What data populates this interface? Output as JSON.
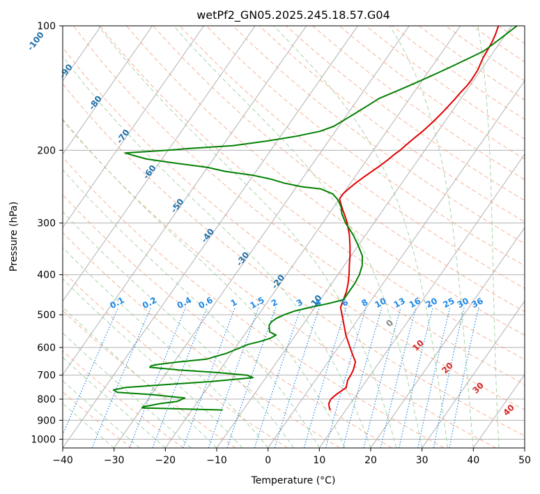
{
  "chart_data": {
    "type": "line",
    "title": "wetPf2_GN05.2025.245.18.57.G04",
    "xlabel": "Temperature (°C)",
    "ylabel": "Pressure (hPa)",
    "xlim": [
      -40,
      50
    ],
    "ylim": [
      1050,
      100
    ],
    "y_scale": "log",
    "grid": true,
    "x_ticks": [
      "−40",
      "−30",
      "−20",
      "−10",
      "0",
      "10",
      "20",
      "30",
      "40",
      "50"
    ],
    "y_ticks": [
      "100",
      "200",
      "300",
      "400",
      "500",
      "600",
      "700",
      "800",
      "900",
      "1000"
    ],
    "series": [
      {
        "color": "#e00000",
        "p": [
          850,
          840,
          820,
          800,
          780,
          750,
          720,
          700,
          680,
          650,
          620,
          600,
          560,
          520,
          480,
          460,
          440,
          420,
          400,
          380,
          360,
          340,
          320,
          300,
          290,
          280,
          270,
          262,
          255,
          248,
          240,
          232,
          225,
          218,
          210,
          205,
          200,
          190,
          180,
          170,
          160,
          150,
          145,
          140,
          135,
          128,
          120,
          115,
          110,
          105,
          100
        ],
        "t": [
          7,
          6.5,
          5.8,
          5.6,
          6.0,
          7.0,
          6.3,
          6.2,
          6.0,
          5.3,
          3.5,
          2.3,
          -0.2,
          -2.5,
          -5.0,
          -5.5,
          -6.0,
          -6.8,
          -7.8,
          -9.0,
          -10.2,
          -11.6,
          -13.2,
          -15.2,
          -16.4,
          -17.7,
          -19.0,
          -20.0,
          -20.0,
          -19.6,
          -19.0,
          -18.2,
          -17.4,
          -16.6,
          -15.8,
          -15.4,
          -14.8,
          -14.0,
          -13.0,
          -12.2,
          -11.6,
          -11.1,
          -10.9,
          -10.6,
          -10.5,
          -10.6,
          -11.2,
          -11.4,
          -11.6,
          -12.0,
          -12.6
        ]
      },
      {
        "color": "#008000",
        "p": [
          850,
          845,
          840,
          835,
          830,
          820,
          810,
          795,
          780,
          770,
          760,
          750,
          740,
          725,
          710,
          700,
          690,
          680,
          670,
          665,
          660,
          650,
          640,
          620,
          600,
          590,
          580,
          570,
          560,
          550,
          540,
          530,
          520,
          510,
          500,
          490,
          480,
          470,
          460,
          450,
          440,
          430,
          420,
          400,
          380,
          360,
          340,
          320,
          300,
          285,
          275,
          268,
          262,
          255,
          248,
          245,
          240,
          235,
          230,
          225,
          220,
          214,
          210,
          206,
          203,
          200,
          198,
          195,
          190,
          185,
          180,
          175,
          170,
          165,
          160,
          155,
          150,
          145,
          140,
          135,
          130,
          125,
          120,
          115,
          110,
          105,
          100
        ],
        "t": [
          -14,
          -22,
          -30,
          -30,
          -29,
          -27,
          -24,
          -23,
          -30,
          -37,
          -38,
          -36,
          -30,
          -20,
          -12.5,
          -14,
          -20,
          -28,
          -34,
          -34,
          -33,
          -29,
          -24,
          -21,
          -19,
          -18,
          -16,
          -14.5,
          -13.8,
          -15.5,
          -16,
          -16.5,
          -16.5,
          -16,
          -15,
          -13.5,
          -11,
          -8,
          -5.5,
          -5.5,
          -5.5,
          -5.5,
          -5.5,
          -5.8,
          -6.5,
          -7.8,
          -10,
          -12.5,
          -15.5,
          -17.5,
          -18.5,
          -19.5,
          -20.5,
          -22,
          -25,
          -29,
          -33,
          -36,
          -40,
          -46,
          -50,
          -58,
          -63,
          -66,
          -68,
          -60,
          -56,
          -48,
          -42,
          -37,
          -33,
          -31,
          -30,
          -29,
          -28,
          -27,
          -26,
          -24,
          -22,
          -20,
          -18,
          -16,
          -14,
          -12,
          -11,
          -10,
          -9
        ]
      }
    ],
    "mixing_ratio_lines": [
      "0.1",
      "0.2",
      "0.4",
      "0.6",
      "1",
      "1.5",
      "2",
      "3",
      "4",
      "6",
      "8",
      "10",
      "13",
      "16",
      "20",
      "25",
      "30",
      "36"
    ],
    "dry_adiabat_labels": [
      "-100",
      "-90",
      "-80",
      "-70",
      "-60",
      "-50",
      "-40",
      "-30",
      "-20",
      "-10"
    ],
    "moist_adiabat_labels": [
      "0",
      "10",
      "20",
      "30",
      "40"
    ]
  }
}
